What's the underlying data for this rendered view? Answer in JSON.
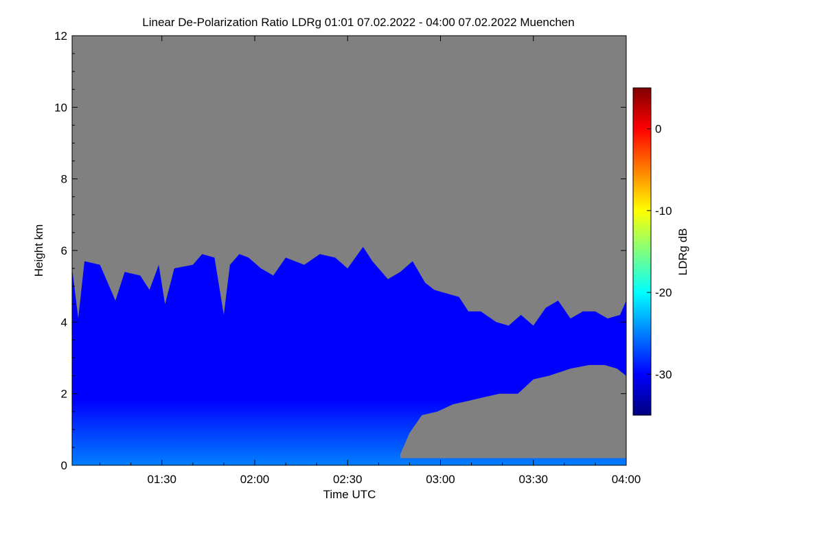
{
  "chart_data": {
    "type": "heatmap",
    "title": "Linear De-Polarization Ratio LDRg   01:01 07.02.2022 - 04:00 07.02.2022 Muenchen",
    "xlabel": "Time UTC",
    "ylabel": "Height km",
    "x_ticks": [
      "01:30",
      "02:00",
      "02:30",
      "03:00",
      "03:30",
      "04:00"
    ],
    "x_tick_minutes": [
      90,
      120,
      150,
      180,
      210,
      240
    ],
    "xlim_minutes": [
      61,
      240
    ],
    "y_ticks": [
      0,
      2,
      4,
      6,
      8,
      10,
      12
    ],
    "ylim": [
      0,
      12
    ],
    "colorbar": {
      "label": "LDRg dB",
      "ticks": [
        0,
        -10,
        -20,
        -30
      ],
      "range": [
        -35,
        5
      ],
      "colors": [
        "#00007f",
        "#0000ff",
        "#007fff",
        "#00ffff",
        "#7fff7f",
        "#ffff00",
        "#ff7f00",
        "#ff0000",
        "#7f0000"
      ]
    },
    "no_signal_color": "#808080",
    "signal_top_km": [
      [
        61,
        5.5
      ],
      [
        63,
        4.1
      ],
      [
        65,
        5.7
      ],
      [
        70,
        5.6
      ],
      [
        75,
        4.6
      ],
      [
        78,
        5.4
      ],
      [
        83,
        5.3
      ],
      [
        86,
        4.9
      ],
      [
        89,
        5.6
      ],
      [
        91,
        4.5
      ],
      [
        94,
        5.5
      ],
      [
        100,
        5.6
      ],
      [
        103,
        5.9
      ],
      [
        107,
        5.8
      ],
      [
        110,
        4.2
      ],
      [
        112,
        5.6
      ],
      [
        115,
        5.9
      ],
      [
        118,
        5.8
      ],
      [
        122,
        5.5
      ],
      [
        126,
        5.3
      ],
      [
        130,
        5.8
      ],
      [
        136,
        5.6
      ],
      [
        141,
        5.9
      ],
      [
        146,
        5.8
      ],
      [
        150,
        5.5
      ],
      [
        155,
        6.1
      ],
      [
        158,
        5.7
      ],
      [
        163,
        5.2
      ],
      [
        167,
        5.4
      ],
      [
        171,
        5.7
      ],
      [
        175,
        5.1
      ],
      [
        178,
        4.9
      ],
      [
        182,
        4.8
      ],
      [
        186,
        4.7
      ],
      [
        189,
        4.3
      ],
      [
        193,
        4.3
      ],
      [
        198,
        4.0
      ],
      [
        202,
        3.9
      ],
      [
        206,
        4.2
      ],
      [
        210,
        3.9
      ],
      [
        214,
        4.4
      ],
      [
        218,
        4.6
      ],
      [
        222,
        4.1
      ],
      [
        226,
        4.3
      ],
      [
        230,
        4.3
      ],
      [
        234,
        4.1
      ],
      [
        238,
        4.2
      ],
      [
        240,
        4.6
      ]
    ],
    "lower_gray_region_top_km": [
      [
        167,
        0.3
      ],
      [
        170,
        0.9
      ],
      [
        174,
        1.4
      ],
      [
        179,
        1.5
      ],
      [
        184,
        1.7
      ],
      [
        189,
        1.8
      ],
      [
        194,
        1.9
      ],
      [
        199,
        2.0
      ],
      [
        205,
        2.0
      ],
      [
        210,
        2.4
      ],
      [
        215,
        2.5
      ],
      [
        222,
        2.7
      ],
      [
        228,
        2.8
      ],
      [
        233,
        2.8
      ],
      [
        237,
        2.7
      ],
      [
        240,
        2.5
      ]
    ],
    "ldr_background_db": -30,
    "ldr_lower_layer_db": -25
  }
}
